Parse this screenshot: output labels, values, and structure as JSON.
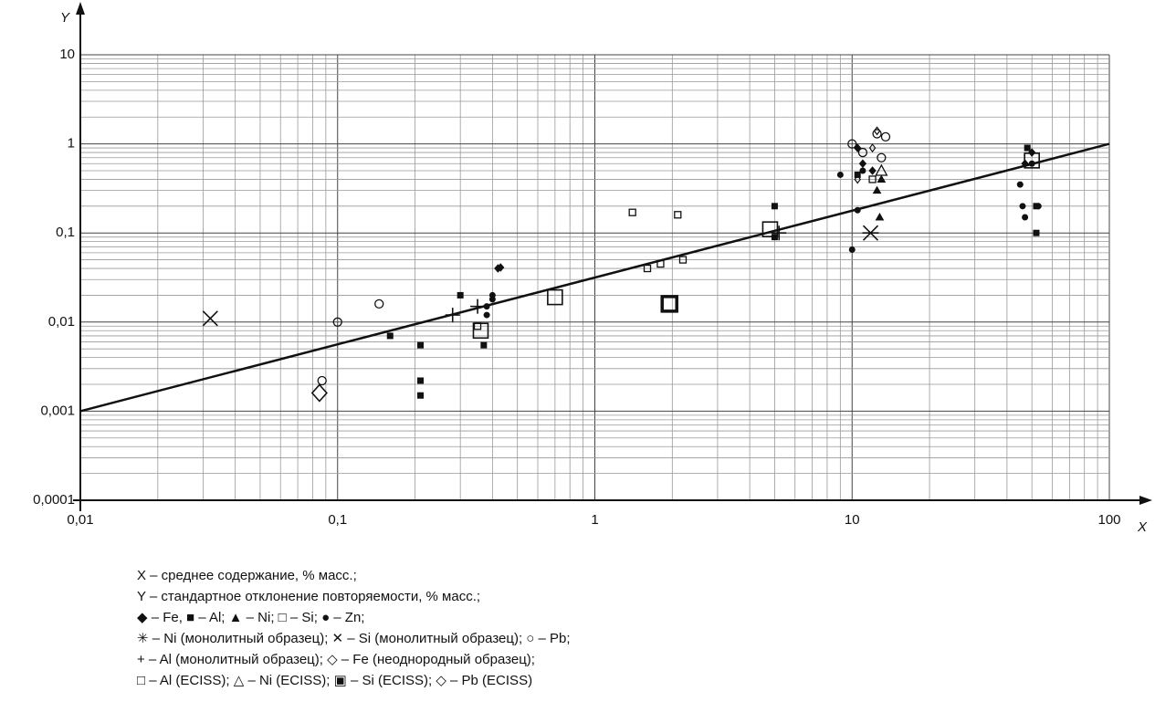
{
  "chart_data": {
    "type": "scatter",
    "xlabel": "X",
    "ylabel": "Y",
    "log_x": true,
    "log_y": true,
    "grid": true,
    "minor_grid": true,
    "xlim": [
      0.01,
      100
    ],
    "ylim": [
      0.0001,
      10
    ],
    "xticks": [
      {
        "value": 0.01,
        "label": "0,01"
      },
      {
        "value": 0.1,
        "label": "0,1"
      },
      1,
      10,
      100
    ],
    "yticks": [
      {
        "value": 0.0001,
        "label": "0,0001"
      },
      {
        "value": 0.001,
        "label": "0,001"
      },
      {
        "value": 0.01,
        "label": "0,01"
      },
      {
        "value": 0.1,
        "label": "0,1"
      },
      1,
      10
    ],
    "fit_line": {
      "x": [
        0.01,
        100
      ],
      "values": [
        0.001,
        1
      ],
      "color": "#111"
    },
    "series": [
      {
        "marker": "diamond-filled",
        "color": "#111",
        "x": [
          0.42,
          0.43,
          10.5,
          11,
          12,
          47,
          50
        ],
        "values": [
          0.04,
          0.041,
          0.9,
          0.6,
          0.5,
          0.6,
          0.8
        ]
      },
      {
        "marker": "square-filled",
        "color": "#111",
        "x": [
          0.16,
          0.21,
          0.21,
          0.21,
          0.3,
          0.37,
          5,
          5,
          10.5,
          52,
          52,
          48
        ],
        "values": [
          0.007,
          0.0055,
          0.0022,
          0.0015,
          0.02,
          0.0055,
          0.2,
          0.09,
          0.45,
          0.2,
          0.1,
          0.9
        ]
      },
      {
        "marker": "triangle-filled",
        "color": "#111",
        "x": [
          12.5,
          13,
          12.8
        ],
        "values": [
          0.3,
          0.4,
          0.15
        ]
      },
      {
        "marker": "square-open",
        "color": "#111",
        "x": [
          1.4,
          2.1,
          1.6,
          1.8,
          2.2,
          0.35,
          12
        ],
        "values": [
          0.17,
          0.16,
          0.04,
          0.045,
          0.05,
          0.009,
          0.4
        ]
      },
      {
        "marker": "circle-filled",
        "color": "#111",
        "x": [
          0.38,
          0.38,
          0.4,
          0.4,
          9,
          10,
          10.5,
          11,
          45,
          46,
          47,
          50,
          53
        ],
        "values": [
          0.015,
          0.012,
          0.02,
          0.018,
          0.45,
          0.065,
          0.18,
          0.5,
          0.35,
          0.2,
          0.15,
          0.6,
          0.2
        ]
      },
      {
        "marker": "asterisk",
        "color": "#111",
        "x": [
          11.8
        ],
        "values": [
          0.1
        ]
      },
      {
        "marker": "cross",
        "color": "#111",
        "x": [
          0.032
        ],
        "values": [
          0.011
        ]
      },
      {
        "marker": "circle-open",
        "color": "#111",
        "x": [
          0.1,
          0.145,
          0.087,
          10,
          12.5,
          13.5,
          13,
          11
        ],
        "values": [
          0.01,
          0.016,
          0.0022,
          1,
          1.3,
          1.2,
          0.7,
          0.8
        ]
      },
      {
        "marker": "plus",
        "color": "#111",
        "x": [
          0.28,
          5.2,
          0.35
        ],
        "values": [
          0.012,
          0.1,
          0.015
        ]
      },
      {
        "marker": "diamond-open-small",
        "color": "#111",
        "x": [
          12.5,
          10.5,
          12
        ],
        "values": [
          1.4,
          0.4,
          0.9
        ]
      },
      {
        "marker": "square-open-large",
        "color": "#111",
        "x": [
          0.36,
          0.7,
          4.8,
          50
        ],
        "values": [
          0.008,
          0.019,
          0.11,
          0.65
        ]
      },
      {
        "marker": "triangle-open",
        "color": "#111",
        "x": [
          13
        ],
        "values": [
          0.5
        ]
      },
      {
        "marker": "square-bold",
        "color": "#111",
        "x": [
          1.95
        ],
        "values": [
          0.016
        ]
      },
      {
        "marker": "diamond-open-large",
        "color": "#111",
        "x": [
          0.085
        ],
        "values": [
          0.0016
        ]
      }
    ],
    "legend_lines": [
      "X – среднее содержание, % масс.;",
      "Y – стандартное отклонение повторяемости, % масс.;",
      "◆ – Fe,  ■ – Al;  ▲ – Ni;  □ – Si;  ● – Zn;",
      "✳ – Ni (монолитный образец);  ✕ – Si (монолитный образец);  ○ – Pb;",
      "+ – Al (монолитный образец);  ◇ – Fe (неоднородный образец);",
      "□ – Al (ECISS);  △ – Ni (ECISS);  ▣ – Si (ECISS);  ◇ – Pb (ECISS)"
    ]
  }
}
